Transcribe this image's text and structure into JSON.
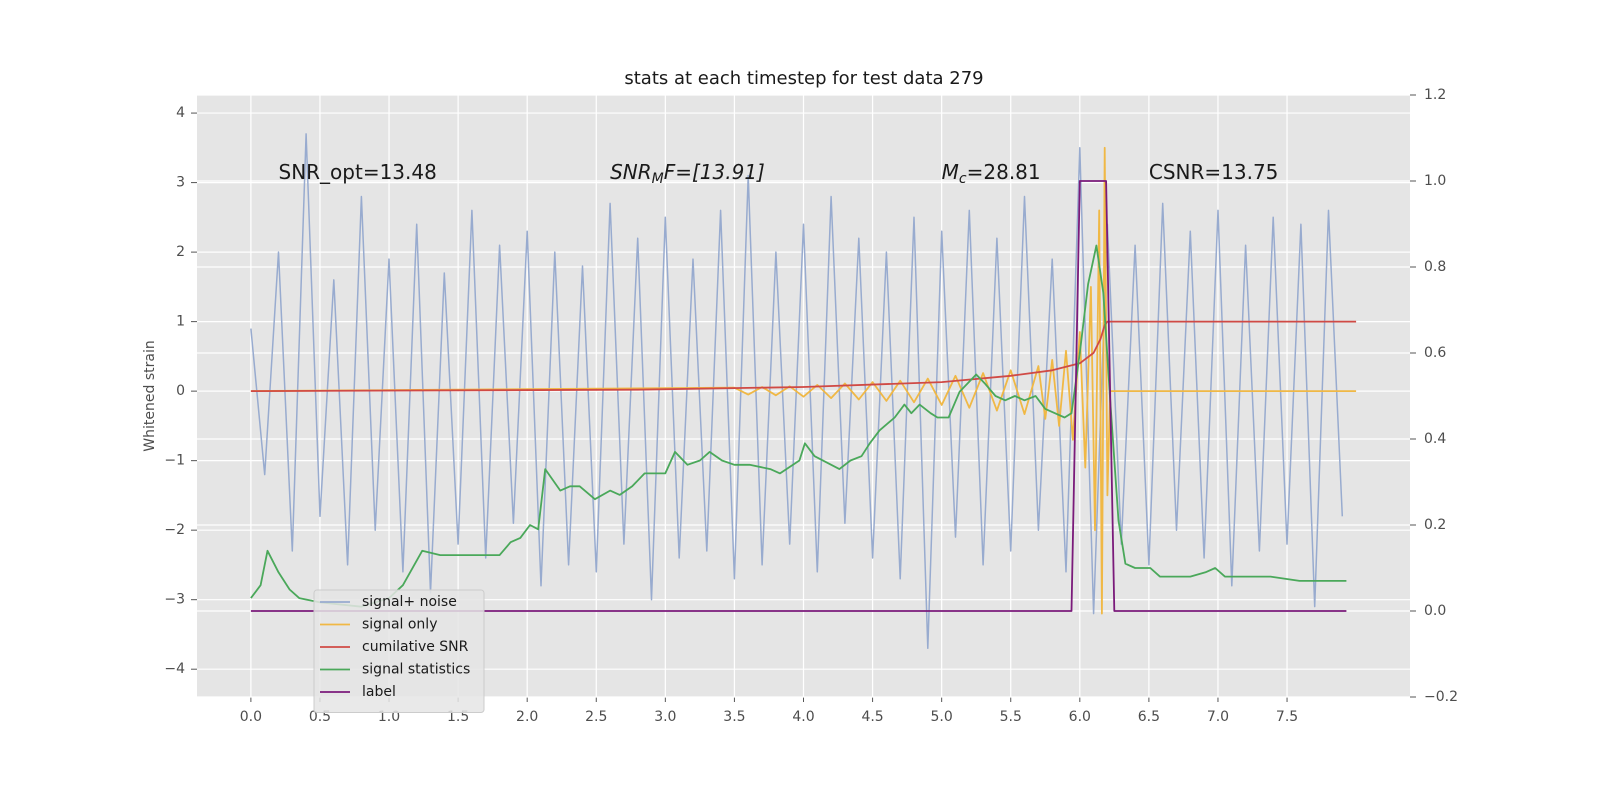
{
  "chart_data": {
    "type": "line",
    "title": "stats at each timestep for test data 279",
    "y_label": "Whitened strain",
    "legend": "lower left",
    "grid": true,
    "xlim": [
      -0.39,
      8.39
    ],
    "xticks": [
      {
        "value": 0,
        "label": "0.0"
      },
      0.5,
      {
        "value": 1,
        "label": "1.0"
      },
      1.5,
      {
        "value": 2,
        "label": "2.0"
      },
      2.5,
      {
        "value": 3,
        "label": "3.0"
      },
      3.5,
      {
        "value": 4,
        "label": "4.0"
      },
      4.5,
      {
        "value": 5,
        "label": "5.0"
      },
      5.5,
      {
        "value": 6,
        "label": "6.0"
      },
      6.5,
      {
        "value": 7,
        "label": "7.0"
      },
      7.5
    ],
    "ylim": [
      -4.4,
      4.26
    ],
    "yticks": [
      {
        "value": -4,
        "label": "−4"
      },
      {
        "value": -3,
        "label": "−3"
      },
      {
        "value": -2,
        "label": "−2"
      },
      {
        "value": -1,
        "label": "−1"
      },
      0,
      1,
      2,
      3,
      4
    ],
    "y2lim": [
      -0.2,
      1.2
    ],
    "y2ticks": [
      {
        "value": -0.2,
        "label": "−0.2"
      },
      {
        "value": 0,
        "label": "0.0"
      },
      0.2,
      0.4,
      0.6,
      0.8,
      {
        "value": 1,
        "label": "1.0"
      },
      1.2
    ],
    "annotations": [
      {
        "text": "SNR_opt=13.48",
        "x": 0.2
      },
      {
        "base": "SNR",
        "sub": "M",
        "rest": "F=[13.91]",
        "x": 2.6
      },
      {
        "base": "M",
        "sub": "c",
        "rest": "=28.81",
        "x": 5.0
      },
      {
        "text": "CSNR=13.75",
        "x": 6.5
      }
    ],
    "series": [
      {
        "name": "signal+ noise",
        "color": "#98abcf",
        "x": [
          0,
          0.1,
          0.2,
          0.3,
          0.4,
          0.5,
          0.6,
          0.7,
          0.8,
          0.9,
          1,
          1.1,
          1.2,
          1.3,
          1.4,
          1.5,
          1.6,
          1.7,
          1.8,
          1.9,
          2,
          2.1,
          2.2,
          2.3,
          2.4,
          2.5,
          2.6,
          2.7,
          2.8,
          2.9,
          3,
          3.1,
          3.2,
          3.3,
          3.4,
          3.5,
          3.6,
          3.7,
          3.8,
          3.9,
          4,
          4.1,
          4.2,
          4.3,
          4.4,
          4.5,
          4.6,
          4.7,
          4.8,
          4.9,
          5,
          5.1,
          5.2,
          5.3,
          5.4,
          5.5,
          5.6,
          5.7,
          5.8,
          5.9,
          6,
          6.1,
          6.2,
          6.3,
          6.4,
          6.5,
          6.6,
          6.7,
          6.8,
          6.9,
          7,
          7.1,
          7.2,
          7.3,
          7.4,
          7.5,
          7.6,
          7.7,
          7.8,
          7.9
        ],
        "values": [
          0.9,
          -1.2,
          2.0,
          -2.3,
          3.7,
          -1.8,
          1.6,
          -2.5,
          2.8,
          -2.0,
          1.9,
          -2.6,
          2.4,
          -2.9,
          1.7,
          -2.2,
          2.6,
          -2.4,
          2.1,
          -1.9,
          2.3,
          -2.8,
          2.0,
          -2.5,
          1.8,
          -2.6,
          2.7,
          -2.2,
          2.2,
          -3.0,
          2.5,
          -2.4,
          1.9,
          -2.3,
          2.6,
          -2.7,
          3.1,
          -2.5,
          2.0,
          -2.2,
          2.4,
          -2.6,
          2.8,
          -1.9,
          2.2,
          -2.4,
          2.0,
          -2.7,
          2.5,
          -3.7,
          2.3,
          -2.1,
          2.6,
          -2.5,
          2.2,
          -2.3,
          2.8,
          -2.0,
          1.9,
          -2.6,
          3.5,
          -3.2,
          2.4,
          -2.2,
          2.1,
          -2.5,
          2.7,
          -2.0,
          2.3,
          -2.4,
          2.6,
          -2.8,
          2.1,
          -2.3,
          2.5,
          -2.2,
          2.4,
          -3.1,
          2.6,
          -1.8
        ]
      },
      {
        "name": "signal only",
        "color": "#f0b845",
        "x": [
          0,
          3.5,
          3.6,
          3.7,
          3.8,
          3.9,
          4.0,
          4.1,
          4.2,
          4.3,
          4.4,
          4.5,
          4.6,
          4.7,
          4.8,
          4.9,
          5.0,
          5.1,
          5.2,
          5.3,
          5.4,
          5.5,
          5.6,
          5.7,
          5.75,
          5.8,
          5.85,
          5.9,
          5.95,
          6.0,
          6.04,
          6.08,
          6.11,
          6.14,
          6.16,
          6.18,
          6.2,
          6.22,
          8.0
        ],
        "values": [
          0,
          0.05,
          -0.05,
          0.06,
          -0.06,
          0.07,
          -0.08,
          0.09,
          -0.1,
          0.11,
          -0.12,
          0.13,
          -0.14,
          0.15,
          -0.16,
          0.18,
          -0.2,
          0.22,
          -0.24,
          0.26,
          -0.28,
          0.3,
          -0.33,
          0.36,
          -0.4,
          0.45,
          -0.5,
          0.58,
          -0.7,
          0.85,
          -1.1,
          1.5,
          -2.0,
          2.6,
          -3.2,
          3.5,
          -1.5,
          0,
          0
        ]
      },
      {
        "name": "cumilative SNR",
        "color": "#d04a45",
        "x": [
          0,
          2.8,
          4.0,
          5.0,
          5.5,
          5.8,
          6.0,
          6.1,
          6.15,
          6.18,
          6.2,
          8.0
        ],
        "values": [
          0,
          0.02,
          0.06,
          0.13,
          0.22,
          0.3,
          0.4,
          0.55,
          0.75,
          0.95,
          1.0,
          1.0
        ]
      },
      {
        "name": "signal statistics",
        "color": "#4aa85a",
        "axis": "y2",
        "x": [
          0,
          0.07,
          0.12,
          0.2,
          0.28,
          0.35,
          0.5,
          0.8,
          1.0,
          1.1,
          1.24,
          1.37,
          1.5,
          1.66,
          1.8,
          1.88,
          1.95,
          2.02,
          2.08,
          2.13,
          2.24,
          2.31,
          2.38,
          2.49,
          2.6,
          2.67,
          2.76,
          2.85,
          2.92,
          3.0,
          3.07,
          3.16,
          3.25,
          3.32,
          3.41,
          3.5,
          3.61,
          3.76,
          3.83,
          3.97,
          4.01,
          4.08,
          4.26,
          4.34,
          4.42,
          4.48,
          4.55,
          4.66,
          4.73,
          4.78,
          4.84,
          4.92,
          4.97,
          5.05,
          5.13,
          5.25,
          5.31,
          5.39,
          5.46,
          5.53,
          5.6,
          5.68,
          5.75,
          5.82,
          5.89,
          5.94,
          6.0,
          6.06,
          6.12,
          6.17,
          6.22,
          6.28,
          6.33,
          6.4,
          6.51,
          6.58,
          6.69,
          6.8,
          6.91,
          6.98,
          7.05,
          7.38,
          7.59,
          7.93
        ],
        "values": [
          0.03,
          0.06,
          0.14,
          0.09,
          0.05,
          0.03,
          0.02,
          0.01,
          0.03,
          0.06,
          0.14,
          0.13,
          0.13,
          0.13,
          0.13,
          0.16,
          0.17,
          0.2,
          0.19,
          0.33,
          0.28,
          0.29,
          0.29,
          0.26,
          0.28,
          0.27,
          0.29,
          0.32,
          0.32,
          0.32,
          0.37,
          0.34,
          0.35,
          0.37,
          0.35,
          0.34,
          0.34,
          0.33,
          0.32,
          0.35,
          0.39,
          0.36,
          0.33,
          0.35,
          0.36,
          0.39,
          0.42,
          0.45,
          0.48,
          0.46,
          0.48,
          0.46,
          0.45,
          0.45,
          0.51,
          0.55,
          0.53,
          0.5,
          0.49,
          0.5,
          0.49,
          0.5,
          0.47,
          0.46,
          0.45,
          0.46,
          0.6,
          0.76,
          0.85,
          0.74,
          0.49,
          0.21,
          0.11,
          0.1,
          0.1,
          0.08,
          0.08,
          0.08,
          0.09,
          0.1,
          0.08,
          0.08,
          0.07,
          0.07
        ]
      },
      {
        "name": "label",
        "color": "#7a1a7a",
        "axis": "y2",
        "x": [
          0,
          5.94,
          6.0,
          6.19,
          6.25,
          7.93
        ],
        "values": [
          0,
          0,
          1,
          1,
          0,
          0
        ]
      }
    ]
  }
}
